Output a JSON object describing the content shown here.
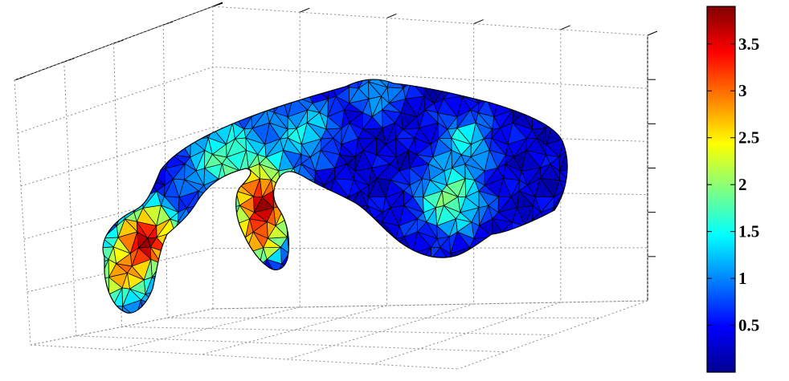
{
  "chart_data": {
    "type": "surface-mesh-3d",
    "title": "",
    "xlabel": "",
    "ylabel": "",
    "zlabel": "",
    "grid": true,
    "colormap": "jet",
    "colorbar": {
      "placement": "right",
      "range": [
        0,
        3.9
      ],
      "ticks": [
        0.5,
        1,
        1.5,
        2,
        2.5,
        3,
        3.5
      ],
      "tick_labels": [
        "0.5",
        "1",
        "1.5",
        "2",
        "2.5",
        "3",
        "3.5"
      ]
    },
    "colors": {
      "background": "#ffffff",
      "axes": "#000000",
      "grid": "#8c8c8c",
      "mesh_edges": "#000000",
      "colormap_low": "#00008f",
      "colormap_high": "#800000"
    }
  }
}
